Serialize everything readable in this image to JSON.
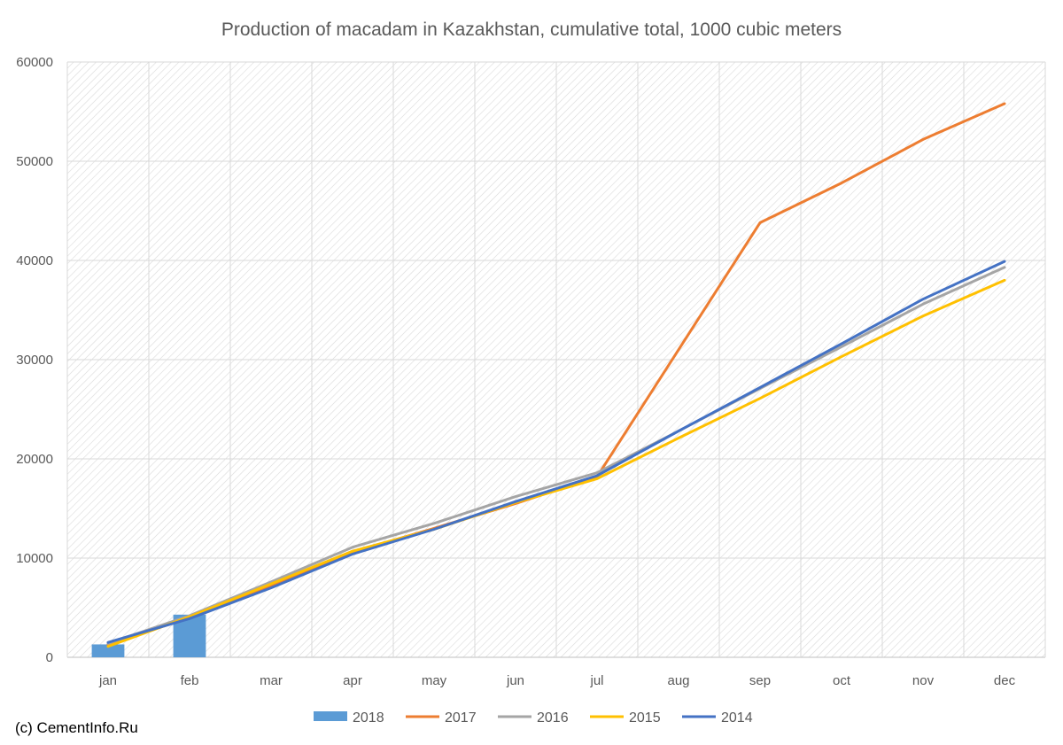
{
  "chart_data": {
    "type": "line",
    "title": "Production of macadam in Kazakhstan, cumulative total, 1000 cubic meters",
    "categories": [
      "jan",
      "feb",
      "mar",
      "apr",
      "may",
      "jun",
      "jul",
      "aug",
      "sep",
      "oct",
      "nov",
      "dec"
    ],
    "ylim": [
      0,
      60000
    ],
    "yticks": [
      0,
      10000,
      20000,
      30000,
      40000,
      50000,
      60000
    ],
    "grid": true,
    "legend_position": "bottom",
    "bar_series": {
      "name": "2018",
      "color": "#5b9bd5",
      "values": [
        1300,
        4300
      ]
    },
    "series": [
      {
        "name": "2017",
        "color": "#ed7d31",
        "values": [
          1300,
          4000,
          7200,
          10600,
          13000,
          15500,
          18200,
          31000,
          43800,
          47800,
          52200,
          55800
        ]
      },
      {
        "name": "2016",
        "color": "#a5a5a5",
        "values": [
          1400,
          4200,
          7600,
          11100,
          13500,
          16200,
          18600,
          22800,
          27100,
          31300,
          35600,
          39300
        ]
      },
      {
        "name": "2015",
        "color": "#ffc000",
        "values": [
          1100,
          4100,
          7400,
          10700,
          12900,
          15600,
          18000,
          22100,
          26100,
          30300,
          34400,
          38000
        ]
      },
      {
        "name": "2014",
        "color": "#4472c4",
        "values": [
          1500,
          3900,
          7000,
          10400,
          12900,
          15700,
          18300,
          22800,
          27200,
          31600,
          36100,
          39900
        ]
      }
    ]
  },
  "credit": "(c) CementInfo.Ru"
}
